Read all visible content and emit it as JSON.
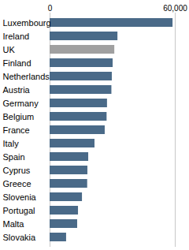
{
  "chart_data": {
    "type": "bar",
    "orientation": "horizontal",
    "categories": [
      "Luxembourg",
      "Ireland",
      "UK",
      "Finland",
      "Netherlands",
      "Austria",
      "Germany",
      "Belgium",
      "France",
      "Italy",
      "Spain",
      "Cyprus",
      "Greece",
      "Slovenia",
      "Portugal",
      "Malta",
      "Slovakia"
    ],
    "values": [
      58900,
      32500,
      31000,
      30200,
      29800,
      29600,
      27500,
      27300,
      26400,
      21500,
      18500,
      18100,
      18000,
      15500,
      13600,
      13200,
      7900
    ],
    "colors": [
      "#4a6a88",
      "#4a6a88",
      "#a0a0a0",
      "#4a6a88",
      "#4a6a88",
      "#4a6a88",
      "#4a6a88",
      "#4a6a88",
      "#4a6a88",
      "#4a6a88",
      "#4a6a88",
      "#4a6a88",
      "#4a6a88",
      "#4a6a88",
      "#4a6a88",
      "#4a6a88",
      "#4a6a88"
    ],
    "xlim": [
      0,
      60000
    ],
    "xticks": [
      0,
      {
        "value": 60000,
        "label": "60,000"
      }
    ],
    "grid": true
  }
}
